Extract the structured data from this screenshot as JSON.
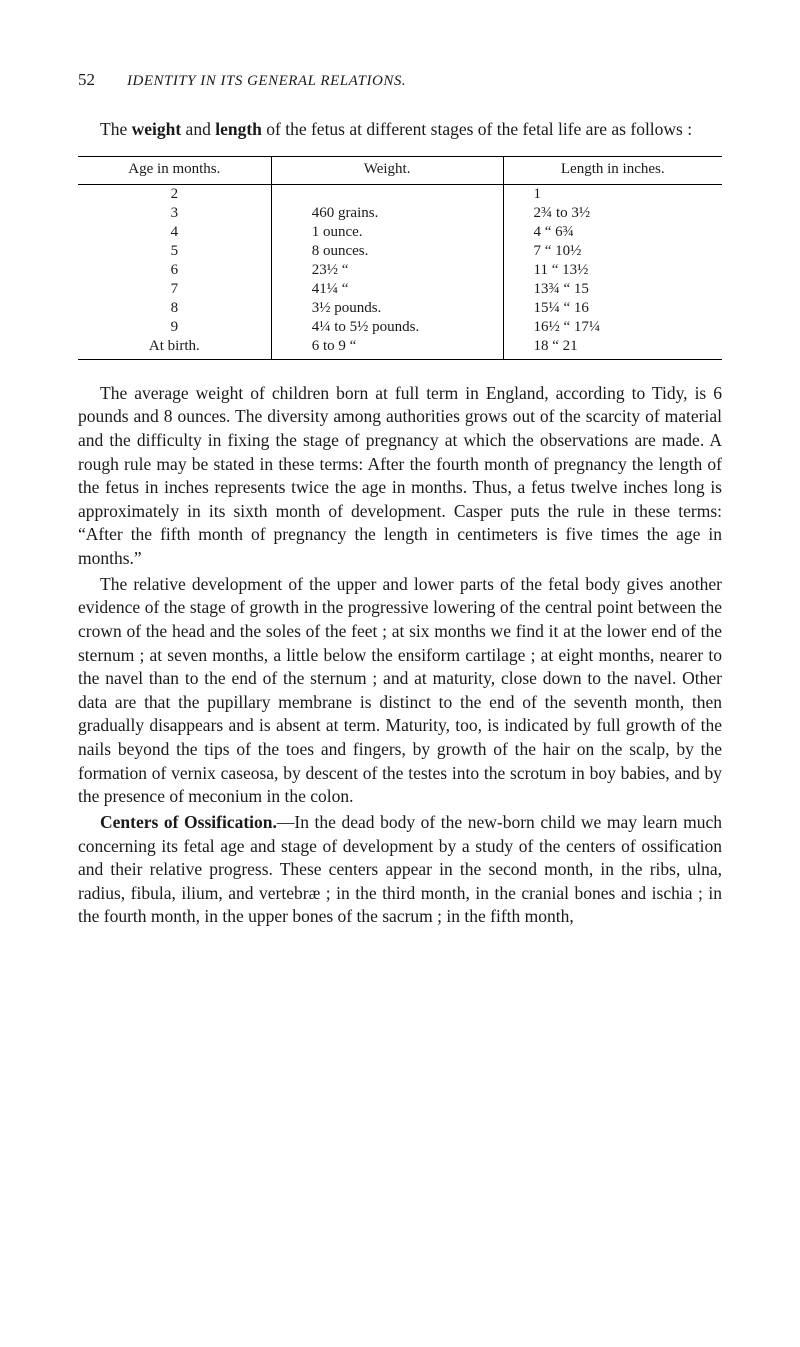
{
  "header": {
    "page_number": "52",
    "running_title": "IDENTITY IN ITS GENERAL RELATIONS."
  },
  "intro": {
    "prefix": "The ",
    "bold1": "weight",
    "mid": " and ",
    "bold2": "length",
    "suffix": " of the fetus at different stages of the fetal life are as follows :"
  },
  "table": {
    "headers": {
      "age": "Age in months.",
      "weight": "Weight.",
      "length": "Length in inches."
    },
    "rows": [
      {
        "age": "2",
        "weight": "",
        "length": "1"
      },
      {
        "age": "3",
        "weight": "460   grains.",
        "length": "2¾ to  3½"
      },
      {
        "age": "4",
        "weight": "1   ounce.",
        "length": "4   “  6¾"
      },
      {
        "age": "5",
        "weight": "8   ounces.",
        "length": "7   “ 10½"
      },
      {
        "age": "6",
        "weight": "23½     “",
        "length": "11   “ 13½"
      },
      {
        "age": "7",
        "weight": "41¼     “",
        "length": "13¾  “ 15"
      },
      {
        "age": "8",
        "weight": "3½ pounds.",
        "length": "15¼  “ 16"
      },
      {
        "age": "9",
        "weight": "4¼ to 5½ pounds.",
        "length": "16½  “ 17¼"
      },
      {
        "age": "At birth.",
        "weight": "6   to 9       “",
        "length": "18   “ 21"
      }
    ]
  },
  "paragraphs": {
    "p1": "The average weight of children born at full term in England, according to Tidy, is 6 pounds and 8 ounces. The diversity among authorities grows out of the scarcity of material and the difficulty in fixing the stage of pregnancy at which the observations are made. A rough rule may be stated in these terms: After the fourth month of pregnancy the length of the fetus in inches represents twice the age in months. Thus, a fetus twelve inches long is approximately in its sixth month of development. Casper puts the rule in these terms: “After the fifth month of pregnancy the length in centimeters is five times the age in months.”",
    "p2": "The relative development of the upper and lower parts of the fetal body gives another evidence of the stage of growth in the progressive lowering of the central point between the crown of the head and the soles of the feet ; at six months we find it at the lower end of the sternum ; at seven months, a little below the ensiform cartilage ; at eight months, nearer to the navel than to the end of the sternum ; and at maturity, close down to the navel. Other data are that the pupillary membrane is distinct to the end of the seventh month, then gradually disappears and is absent at term. Maturity, too, is indicated by full growth of the nails beyond the tips of the toes and fingers, by growth of the hair on the scalp, by the formation of vernix caseosa, by descent of the testes into the scrotum in boy babies, and by the presence of meconium in the colon.",
    "p3_lead": "Centers of Ossification.",
    "p3_rest": "—In the dead body of the new-born child we may learn much concerning its fetal age and stage of development by a study of the centers of ossification and their relative progress. These centers appear in the second month, in the ribs, ulna, radius, fibula, ilium, and vertebræ ; in the third month, in the cranial bones and ischia ; in the fourth month, in the upper bones of the sacrum ; in the fifth month,"
  }
}
